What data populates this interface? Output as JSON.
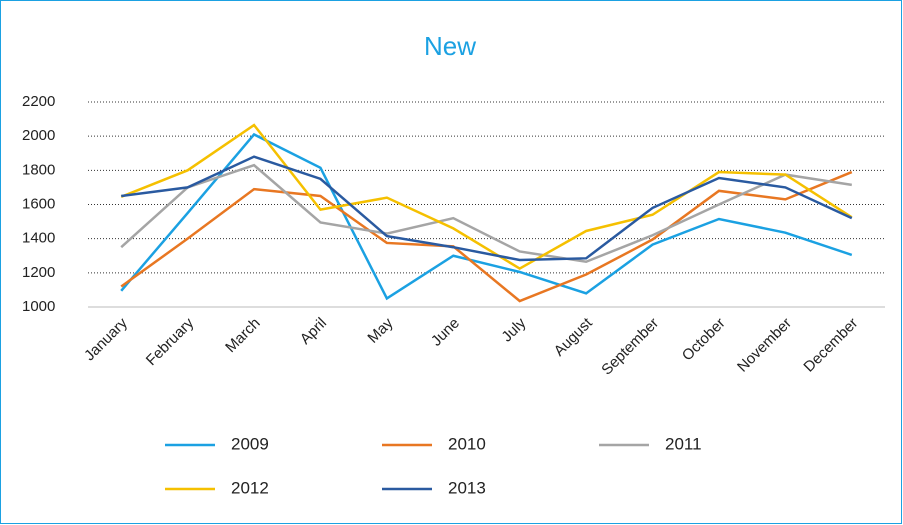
{
  "chart_data": {
    "type": "line",
    "title": "New",
    "categories": [
      "January",
      "February",
      "March",
      "April",
      "May",
      "June",
      "July",
      "August",
      "September",
      "October",
      "November",
      "December"
    ],
    "series": [
      {
        "name": "2009",
        "color": "#1ba1e2",
        "values": [
          1095,
          1550,
          2010,
          1815,
          1050,
          1300,
          1205,
          1080,
          1365,
          1515,
          1435,
          1305
        ]
      },
      {
        "name": "2010",
        "color": "#e87722",
        "values": [
          1120,
          1400,
          1690,
          1650,
          1375,
          1355,
          1035,
          1190,
          1395,
          1680,
          1630,
          1790
        ]
      },
      {
        "name": "2011",
        "color": "#a5a5a5",
        "values": [
          1350,
          1700,
          1830,
          1495,
          1430,
          1520,
          1325,
          1265,
          1420,
          1600,
          1775,
          1715
        ]
      },
      {
        "name": "2012",
        "color": "#f5c000",
        "values": [
          1645,
          1800,
          2065,
          1570,
          1640,
          1460,
          1225,
          1445,
          1540,
          1790,
          1775,
          1525
        ]
      },
      {
        "name": "2013",
        "color": "#2a5aa0",
        "values": [
          1650,
          1700,
          1880,
          1750,
          1415,
          1350,
          1275,
          1285,
          1580,
          1755,
          1700,
          1520
        ]
      }
    ],
    "ylim": [
      1000,
      2200
    ],
    "yticks": [
      1000,
      1200,
      1400,
      1600,
      1800,
      2000,
      2200
    ],
    "grid": true,
    "legend": "bottom"
  }
}
